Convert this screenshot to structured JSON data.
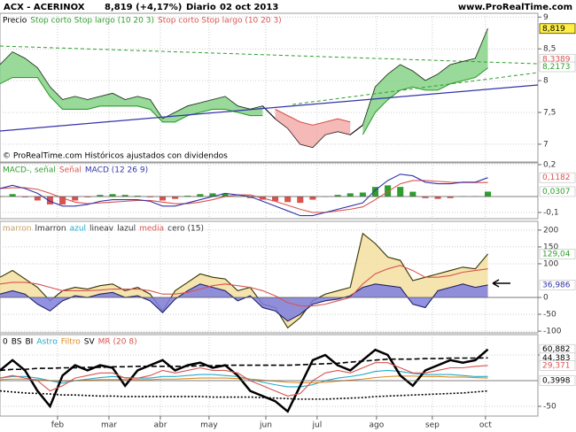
{
  "header": {
    "ticker": "ACX - ACERINOX",
    "quote": "8,819 (+4,17%)",
    "period": "Diario",
    "date": "02 oct 2013",
    "site": "www.ProRealTime.com"
  },
  "chart_data": [
    {
      "type": "line",
      "legend_items": [
        {
          "text": "Precio",
          "color": "#000000"
        },
        {
          "text": "Stop corto Stop largo (10 20 3)",
          "color": "#2e9e2e"
        },
        {
          "text": "Stop corto Stop largo (10 20 3)",
          "color": "#d9534f"
        }
      ],
      "annotation": "© ProRealTime.com Históricos ajustados con dividendos",
      "ylim": [
        6.72,
        9.06
      ],
      "yticks": [
        7,
        {
          "value": 7.5,
          "label": "7,5"
        },
        8,
        {
          "value": 8.5,
          "label": "8,5"
        },
        9
      ],
      "grid": true,
      "series": [
        {
          "style": "line",
          "color": "#000000",
          "values": [
            8.25,
            8.45,
            8.35,
            8.2,
            7.9,
            7.7,
            7.75,
            7.7,
            7.75,
            7.8,
            7.7,
            7.75,
            7.7,
            7.4,
            7.5,
            7.6,
            7.65,
            7.7,
            7.75,
            7.6,
            7.55,
            7.6,
            7.4,
            7.25,
            7.0,
            6.95,
            7.15,
            7.2,
            7.15,
            7.3,
            7.9,
            8.1,
            8.25,
            8.15,
            8.0,
            8.1,
            8.25,
            8.3,
            8.35,
            8.819
          ]
        },
        {
          "style": "band",
          "color": "#2e9e2e",
          "fill": "#7fd07f",
          "values": [
            7.95,
            8.05,
            8.05,
            8.05,
            7.75,
            7.55,
            7.55,
            7.55,
            7.6,
            7.6,
            7.6,
            7.6,
            7.55,
            7.35,
            7.35,
            7.45,
            7.5,
            7.55,
            7.55,
            7.5,
            7.45,
            7.45,
            null,
            null,
            null,
            null,
            null,
            null,
            null,
            7.15,
            7.5,
            7.7,
            7.85,
            7.9,
            7.85,
            7.85,
            7.95,
            8.0,
            8.05,
            8.2
          ]
        },
        {
          "style": "band",
          "color": "#d9534f",
          "fill": "#f2a7a5",
          "values": [
            null,
            null,
            null,
            null,
            null,
            null,
            null,
            null,
            null,
            null,
            null,
            null,
            null,
            null,
            null,
            null,
            null,
            null,
            null,
            null,
            null,
            null,
            7.55,
            7.45,
            7.35,
            7.3,
            7.35,
            7.4,
            7.35,
            null,
            null,
            null,
            null,
            null,
            null,
            null,
            null,
            null,
            null,
            null
          ]
        }
      ],
      "last_labels": [
        {
          "value": 8.819,
          "label": "8,819",
          "color": "#000000",
          "background": "#ffee44"
        },
        {
          "value": 8.3389,
          "label": "8,3389",
          "color": "#d9534f",
          "background": "#ffffff"
        },
        {
          "value": 8.2173,
          "label": "8,2173",
          "color": "#2e9e2e",
          "background": "#ffffff"
        }
      ]
    },
    {
      "type": "line",
      "legend_items": [
        {
          "text": "MACD-, señal",
          "color": "#2e9e2e"
        },
        {
          "text": "Señal",
          "color": "#d9534f"
        },
        {
          "text": "MACD (12 26 9)",
          "color": "#3333aa"
        }
      ],
      "ylim": [
        -0.139,
        0.211
      ],
      "yticks": [
        {
          "value": -0.1,
          "label": "-0,1"
        },
        {
          "value": 0.2,
          "label": "0,2"
        }
      ],
      "grid": true,
      "series": [
        {
          "style": "bar",
          "color": "#2e9e2e",
          "color_neg": "#d9534f",
          "values": [
            0,
            0.015,
            -0.005,
            -0.025,
            -0.05,
            -0.05,
            -0.025,
            -0.005,
            0.01,
            0.015,
            0.01,
            0.005,
            -0.005,
            -0.025,
            -0.015,
            0.005,
            0.015,
            0.02,
            0.02,
            0,
            -0.01,
            -0.02,
            -0.03,
            -0.035,
            -0.04,
            -0.02,
            0,
            0.01,
            0.02,
            0.025,
            0.06,
            0.07,
            0.06,
            0.03,
            -0.01,
            -0.015,
            -0.01,
            0.002,
            0.002,
            0.0307
          ]
        },
        {
          "style": "line",
          "color": "#d9534f",
          "values": [
            0.05,
            0.055,
            0.055,
            0.045,
            0.02,
            -0.01,
            -0.035,
            -0.045,
            -0.04,
            -0.035,
            -0.03,
            -0.025,
            -0.025,
            -0.035,
            -0.045,
            -0.045,
            -0.035,
            -0.02,
            0.0,
            0.01,
            0.01,
            -0.01,
            -0.03,
            -0.055,
            -0.08,
            -0.1,
            -0.1,
            -0.09,
            -0.08,
            -0.065,
            -0.02,
            0.03,
            0.08,
            0.1,
            0.1,
            0.095,
            0.09,
            0.088,
            0.088,
            0.0875
          ]
        },
        {
          "style": "line",
          "color": "#3333aa",
          "values": [
            0.05,
            0.07,
            0.05,
            0.02,
            -0.03,
            -0.06,
            -0.06,
            -0.05,
            -0.03,
            -0.02,
            -0.02,
            -0.02,
            -0.03,
            -0.06,
            -0.06,
            -0.04,
            -0.02,
            0.0,
            0.02,
            0.01,
            0.0,
            -0.03,
            -0.06,
            -0.09,
            -0.12,
            -0.12,
            -0.1,
            -0.08,
            -0.06,
            -0.04,
            0.04,
            0.1,
            0.14,
            0.13,
            0.09,
            0.08,
            0.08,
            0.09,
            0.09,
            0.1182
          ]
        }
      ],
      "last_labels": [
        {
          "value": 0.1182,
          "label": "0,1182",
          "color": "#d9534f",
          "background": "#ffffff"
        },
        {
          "value": 0.0307,
          "label": "0,0307",
          "color": "#2e9e2e",
          "background": "#ffffff"
        }
      ]
    },
    {
      "type": "line",
      "legend_items": [
        {
          "text": "marron",
          "color": "#c8a060"
        },
        {
          "text": "lmarron",
          "color": "#333333"
        },
        {
          "text": "azul",
          "color": "#22aacc"
        },
        {
          "text": "lineav",
          "color": "#333333"
        },
        {
          "text": "lazul",
          "color": "#333333"
        },
        {
          "text": "media",
          "color": "#d9534f"
        },
        {
          "text": "cero (15)",
          "color": "#333333"
        }
      ],
      "ylim": [
        -105,
        226
      ],
      "yticks": [
        -100,
        -50,
        0,
        100,
        150,
        200
      ],
      "grid": true,
      "series": [
        {
          "style": "area",
          "color": "#333300",
          "fill": "#f5dfa0",
          "values": [
            60,
            80,
            55,
            30,
            -10,
            20,
            30,
            25,
            35,
            40,
            20,
            30,
            10,
            -40,
            20,
            45,
            70,
            60,
            55,
            20,
            30,
            -20,
            -30,
            -90,
            -60,
            -10,
            10,
            20,
            30,
            190,
            160,
            120,
            110,
            50,
            60,
            70,
            80,
            90,
            85,
            129.04
          ]
        },
        {
          "style": "area",
          "color": "#222266",
          "fill": "#7f7fe0",
          "values": [
            10,
            20,
            10,
            -20,
            -40,
            -10,
            5,
            0,
            10,
            15,
            0,
            5,
            -10,
            -45,
            -5,
            20,
            40,
            30,
            20,
            -10,
            5,
            -30,
            -40,
            -70,
            -50,
            -20,
            -10,
            -5,
            5,
            30,
            40,
            35,
            30,
            -20,
            -30,
            20,
            30,
            40,
            30,
            36.986
          ]
        },
        {
          "style": "line",
          "color": "#d9534f",
          "values": [
            40,
            45,
            45,
            40,
            30,
            20,
            20,
            20,
            22,
            25,
            25,
            25,
            20,
            10,
            10,
            15,
            25,
            35,
            40,
            35,
            30,
            20,
            5,
            -15,
            -25,
            -25,
            -20,
            -10,
            0,
            40,
            70,
            85,
            95,
            80,
            60,
            60,
            65,
            75,
            80,
            85
          ]
        }
      ],
      "last_labels": [
        {
          "value": 129.04,
          "label": "129,04",
          "color": "#2e9e2e",
          "background": "#ffffff"
        },
        {
          "value": 36.986,
          "label": "36,986",
          "color": "#3333aa",
          "background": "#ffffff"
        }
      ]
    },
    {
      "type": "line",
      "legend_items": [
        {
          "text": "0",
          "color": "#000000"
        },
        {
          "text": "BS",
          "color": "#000000"
        },
        {
          "text": "BI",
          "color": "#000000"
        },
        {
          "text": "Astro",
          "color": "#22aacc"
        },
        {
          "text": "Filtro",
          "color": "#e08a20"
        },
        {
          "text": "SV",
          "color": "#000000"
        },
        {
          "text": "MR (20 8)",
          "color": "#d9534f"
        }
      ],
      "ylim": [
        -69,
        89.7
      ],
      "yticks": [
        -50,
        50
      ],
      "grid": true,
      "xlim": [
        0,
        43
      ],
      "xticks": [
        {
          "value": 4.6,
          "label": "feb"
        },
        {
          "value": 8.71,
          "label": "mar"
        },
        {
          "value": 12.82,
          "label": "abr"
        },
        {
          "value": 16.71,
          "label": "may"
        },
        {
          "value": 21.25,
          "label": "jun"
        },
        {
          "value": 25.35,
          "label": "jul"
        },
        {
          "value": 30.1,
          "label": "ago"
        },
        {
          "value": 34.56,
          "label": "sep"
        },
        {
          "value": 38.81,
          "label": "oct"
        }
      ],
      "series": [
        {
          "style": "dashed",
          "color": "#000000",
          "values": [
            20,
            22,
            22,
            24,
            24,
            25,
            25,
            26,
            26,
            27,
            27,
            28,
            28,
            28,
            28,
            28,
            29,
            29,
            30,
            30,
            30,
            30,
            30,
            30,
            31,
            32,
            33,
            34,
            36,
            38,
            40,
            42,
            42,
            42,
            43,
            43,
            44,
            44,
            44,
            44.383
          ]
        },
        {
          "style": "dotted",
          "color": "#000000",
          "values": [
            -20,
            -22,
            -24,
            -25,
            -26,
            -28,
            -28,
            -29,
            -30,
            -30,
            -31,
            -31,
            -31,
            -31,
            -31,
            -31,
            -31,
            -32,
            -32,
            -32,
            -32,
            -33,
            -34,
            -35,
            -36,
            -36,
            -36,
            -35,
            -34,
            -33,
            -31,
            -30,
            -29,
            -28,
            -27,
            -26,
            -25,
            -24,
            -22,
            -20
          ]
        },
        {
          "style": "line",
          "color": "#22aacc",
          "values": [
            5,
            8,
            8,
            5,
            0,
            -5,
            0,
            3,
            6,
            8,
            6,
            5,
            5,
            8,
            8,
            10,
            12,
            12,
            10,
            8,
            3,
            -3,
            -8,
            -12,
            -12,
            -8,
            0,
            5,
            8,
            12,
            18,
            20,
            18,
            14,
            12,
            12,
            12,
            10,
            8,
            8
          ]
        },
        {
          "style": "line",
          "color": "#e08a20",
          "values": [
            2,
            3,
            3,
            2,
            0,
            -1,
            0,
            1,
            2,
            2,
            2,
            2,
            2,
            3,
            3,
            4,
            5,
            5,
            5,
            4,
            3,
            1,
            -1,
            -3,
            -4,
            -4,
            -3,
            -1,
            1,
            3,
            6,
            8,
            9,
            9,
            8,
            8,
            7,
            7,
            6,
            5
          ]
        },
        {
          "style": "thick",
          "color": "#000000",
          "values": [
            20,
            40,
            20,
            -20,
            -50,
            10,
            30,
            20,
            30,
            25,
            -10,
            20,
            30,
            40,
            20,
            30,
            35,
            25,
            30,
            10,
            -20,
            -30,
            -40,
            -60,
            -10,
            40,
            50,
            30,
            20,
            40,
            60,
            50,
            10,
            -10,
            20,
            30,
            40,
            35,
            40,
            60.882
          ]
        },
        {
          "style": "line",
          "color": "#d9534f",
          "values": [
            5,
            10,
            5,
            0,
            -20,
            -10,
            5,
            10,
            15,
            15,
            5,
            5,
            10,
            20,
            15,
            20,
            25,
            20,
            20,
            15,
            0,
            -10,
            -20,
            -30,
            -25,
            0,
            15,
            20,
            15,
            25,
            35,
            35,
            25,
            15,
            15,
            20,
            25,
            25,
            28,
            29.371
          ]
        }
      ],
      "last_labels": [
        {
          "value": 60.882,
          "label": "60,882",
          "color": "#000000",
          "background": "#ffffff"
        },
        {
          "value": 44.383,
          "label": "44,383",
          "color": "#000000",
          "background": "#ffffff"
        },
        {
          "value": 29.371,
          "label": "29,371",
          "color": "#d9534f",
          "background": "#ffffff"
        },
        {
          "value": 0.3998,
          "label": "0,3998",
          "color": "#000000",
          "background": "#ffffff"
        }
      ]
    }
  ]
}
